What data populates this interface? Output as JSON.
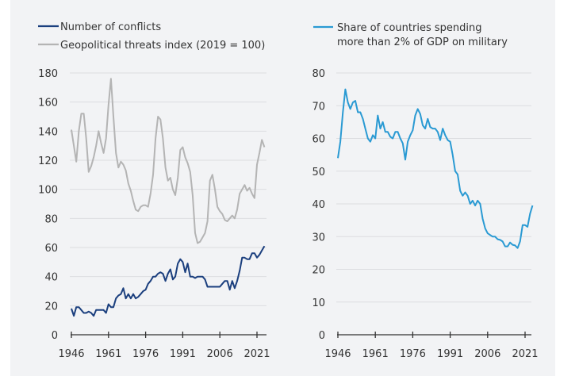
{
  "chart_data": [
    {
      "type": "line",
      "legend_placement": "top-left",
      "grid": true,
      "ylim": [
        0,
        180
      ],
      "yticks": [
        0,
        20,
        40,
        60,
        80,
        100,
        120,
        140,
        160,
        180
      ],
      "xlim": [
        1946,
        2024
      ],
      "xticks": [
        1946,
        1961,
        1976,
        1991,
        2006,
        2021
      ],
      "x_start": 1946,
      "series": [
        {
          "name": "Number of conflicts",
          "color": "#1b3f7e",
          "values": [
            18,
            13,
            19,
            19,
            17,
            15,
            15,
            16,
            15,
            13,
            17,
            17,
            17,
            17,
            15,
            21,
            19,
            19,
            25,
            27,
            28,
            32,
            25,
            28,
            25,
            28,
            25,
            26,
            28,
            30,
            31,
            35,
            37,
            40,
            40,
            42,
            43,
            42,
            37,
            42,
            45,
            38,
            40,
            49,
            52,
            50,
            43,
            49,
            40,
            40,
            39,
            40,
            40,
            40,
            38,
            33,
            33,
            33,
            33,
            33,
            33,
            35,
            37,
            37,
            31,
            37,
            32,
            37,
            44,
            53,
            53,
            52,
            52,
            56,
            56,
            53,
            55,
            58,
            61
          ]
        },
        {
          "name": "Geopolitical threats index (2019 = 100)",
          "color": "#b4b4b4",
          "values": [
            141,
            130,
            119,
            140,
            152,
            152,
            135,
            112,
            116,
            122,
            130,
            140,
            132,
            125,
            135,
            158,
            176,
            150,
            125,
            115,
            119,
            117,
            113,
            104,
            99,
            92,
            86,
            85,
            88,
            89,
            89,
            88,
            97,
            110,
            135,
            150,
            148,
            135,
            115,
            106,
            108,
            100,
            96,
            108,
            127,
            129,
            122,
            118,
            112,
            96,
            70,
            63,
            64,
            67,
            70,
            78,
            106,
            110,
            100,
            88,
            85,
            83,
            79,
            78,
            80,
            82,
            80,
            86,
            97,
            100,
            103,
            99,
            101,
            97,
            94,
            117,
            125,
            134,
            129
          ]
        }
      ]
    },
    {
      "type": "line",
      "legend_placement": "top-left",
      "grid": true,
      "ylim": [
        0,
        80
      ],
      "yticks": [
        0,
        10,
        20,
        30,
        40,
        50,
        60,
        70,
        80
      ],
      "xlim": [
        1946,
        2024
      ],
      "xticks": [
        1946,
        1961,
        1976,
        1991,
        2006,
        2021
      ],
      "x_start": 1946,
      "series": [
        {
          "name": "Share of countries spending more than 2% of GDP on military",
          "name_lines": [
            "Share of countries spending",
            "more than 2% of GDP on military"
          ],
          "color": "#2a9ad3",
          "values": [
            54,
            59,
            68,
            75,
            71,
            69,
            71,
            71.5,
            68,
            68,
            66,
            63,
            60,
            59,
            61,
            60,
            67,
            63,
            65,
            62,
            62,
            60.5,
            60,
            62,
            62,
            60,
            58.5,
            53.5,
            59,
            61,
            62.5,
            67,
            69,
            67.5,
            64,
            63,
            66,
            63.5,
            63,
            63,
            62,
            59.5,
            63,
            61,
            59.5,
            59,
            55,
            50,
            49,
            44,
            42.5,
            43.5,
            42.5,
            40,
            41,
            39.5,
            41,
            40,
            35.5,
            32.5,
            31,
            30.5,
            30,
            30,
            29.2,
            29,
            28.5,
            27,
            27,
            28.2,
            27.5,
            27.3,
            26.5,
            28.5,
            33.5,
            33.5,
            33,
            37,
            39.5
          ]
        }
      ]
    }
  ]
}
